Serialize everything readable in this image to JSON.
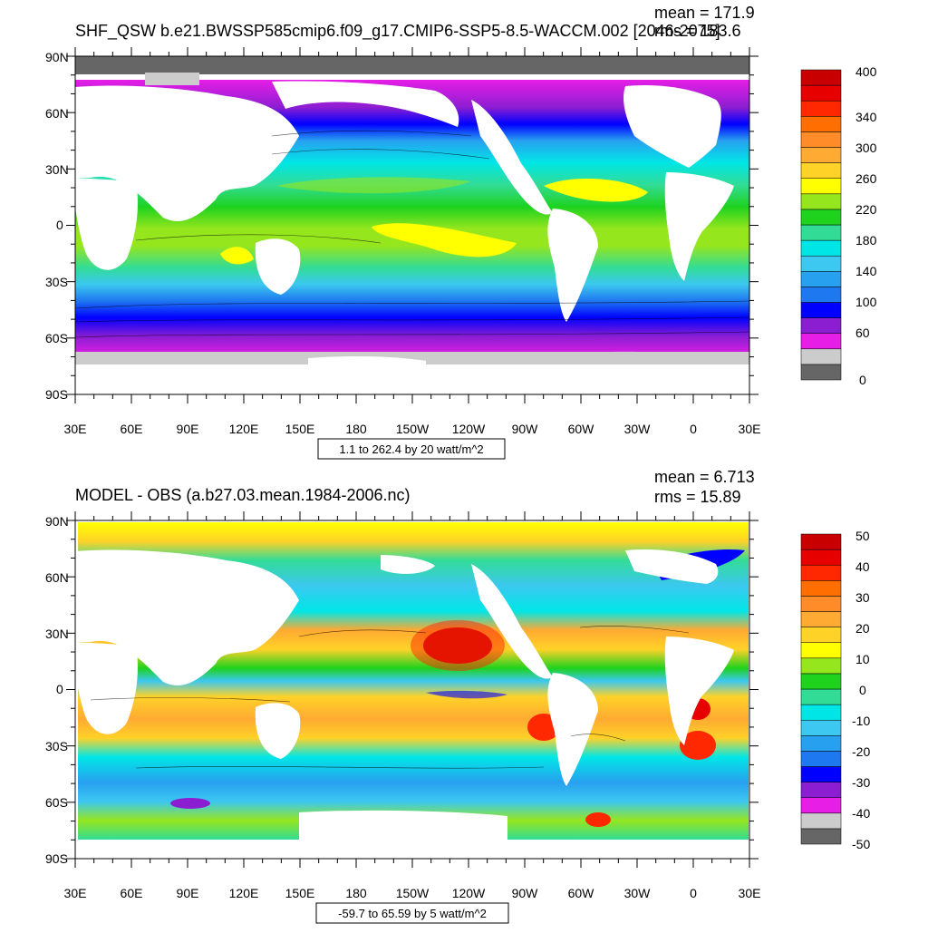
{
  "panels": [
    {
      "title": "SHF_QSW b.e21.BWSSP585cmip6.f09_g17.CMIP6-SSP5-8.5-WACCM.002 [2046-2075]",
      "mean_label": "mean = 171.9",
      "rms_label": "rms = 183.6",
      "range_label": "1.1 to 262.4 by 20 watt/m^2",
      "lat_ticks": [
        "90N",
        "60N",
        "30N",
        "0",
        "30S",
        "60S",
        "90S"
      ],
      "lon_ticks": [
        "30E",
        "60E",
        "90E",
        "120E",
        "150E",
        "180",
        "150W",
        "120W",
        "90W",
        "60W",
        "30W",
        "0",
        "30E"
      ],
      "colorbar": {
        "colors": [
          "#666666",
          "#cccccc",
          "#e61ee6",
          "#8c1ed2",
          "#0000ff",
          "#1e78f0",
          "#28a0f0",
          "#3cc8f0",
          "#00e6e6",
          "#32dc96",
          "#1ed21e",
          "#96e61e",
          "#ffff00",
          "#ffd228",
          "#ffaa32",
          "#ff8c28",
          "#ff6e00",
          "#ff2800",
          "#e60000",
          "#c80000"
        ],
        "labels": [
          "0",
          "60",
          "100",
          "140",
          "180",
          "220",
          "260",
          "300",
          "340",
          "400"
        ]
      }
    },
    {
      "title": "MODEL - OBS (a.b27.03.mean.1984-2006.nc)",
      "mean_label": "mean = 6.713",
      "rms_label": "rms = 15.89",
      "range_label": "-59.7 to 65.59 by 5 watt/m^2",
      "lat_ticks": [
        "90N",
        "60N",
        "30N",
        "0",
        "30S",
        "60S",
        "90S"
      ],
      "lon_ticks": [
        "30E",
        "60E",
        "90E",
        "120E",
        "150E",
        "180",
        "150W",
        "120W",
        "90W",
        "60W",
        "30W",
        "0",
        "30E"
      ],
      "colorbar": {
        "colors": [
          "#666666",
          "#cccccc",
          "#e61ee6",
          "#8c1ed2",
          "#0000ff",
          "#1e78f0",
          "#28a0f0",
          "#3cc8f0",
          "#00e6e6",
          "#32dc96",
          "#1ed21e",
          "#96e61e",
          "#ffff00",
          "#ffd228",
          "#ffaa32",
          "#ff8c28",
          "#ff6e00",
          "#ff2800",
          "#e60000",
          "#c80000"
        ],
        "labels": [
          "-50",
          "-40",
          "-30",
          "-20",
          "-10",
          "0",
          "10",
          "20",
          "30",
          "40",
          "50"
        ]
      }
    }
  ]
}
